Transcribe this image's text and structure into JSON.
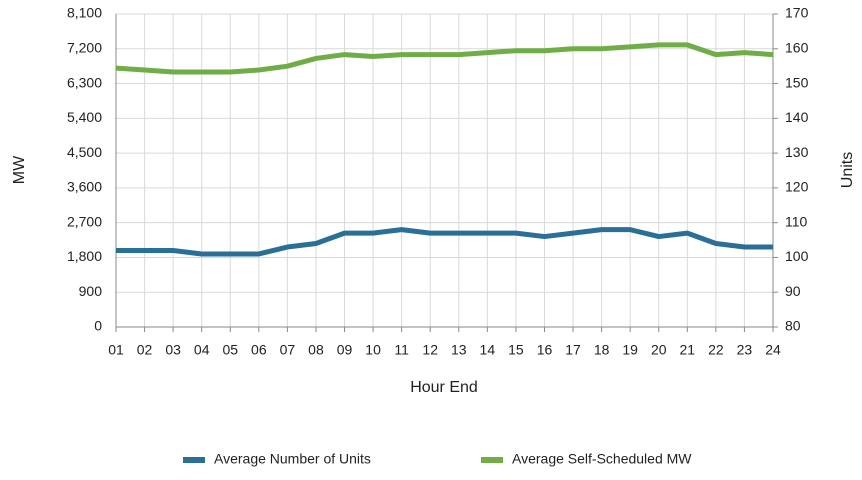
{
  "chart_data": {
    "type": "line",
    "categories": [
      "01",
      "02",
      "03",
      "04",
      "05",
      "06",
      "07",
      "08",
      "09",
      "10",
      "11",
      "12",
      "13",
      "14",
      "15",
      "16",
      "17",
      "18",
      "19",
      "20",
      "21",
      "22",
      "23",
      "24"
    ],
    "series": [
      {
        "name": "Average Number of Units",
        "color": "#2a6f97",
        "axis": "y2",
        "values": [
          102,
          102,
          102,
          101,
          101,
          101,
          103,
          104,
          107,
          107,
          108,
          107,
          107,
          107,
          107,
          106,
          107,
          108,
          108,
          106,
          107,
          104,
          103,
          103
        ]
      },
      {
        "name": "Average Self-Scheduled MW",
        "color": "#70ad47",
        "values": [
          6700,
          6650,
          6600,
          6600,
          6600,
          6650,
          6750,
          6950,
          7050,
          7000,
          7050,
          7050,
          7050,
          7100,
          7150,
          7150,
          7200,
          7200,
          7250,
          7300,
          7300,
          7050,
          7100,
          7050
        ]
      }
    ],
    "ylabel": "MW",
    "y2label": "Units",
    "xlabel": "Hour End",
    "ylim": [
      0,
      8100
    ],
    "yticks": [
      0,
      900,
      {
        "value": 1800,
        "label": "1,800"
      },
      {
        "value": 2700,
        "label": "2,700"
      },
      {
        "value": 3600,
        "label": "3,600"
      },
      {
        "value": 4500,
        "label": "4,500"
      },
      {
        "value": 5400,
        "label": "5,400"
      },
      {
        "value": 6300,
        "label": "6,300"
      },
      {
        "value": 7200,
        "label": "7,200"
      },
      {
        "value": 8100,
        "label": "8,100"
      }
    ],
    "y2lim": [
      80,
      170
    ],
    "y2ticks": [
      80,
      90,
      100,
      110,
      120,
      130,
      140,
      150,
      160,
      170
    ],
    "grid": true,
    "legend": "bottom"
  }
}
